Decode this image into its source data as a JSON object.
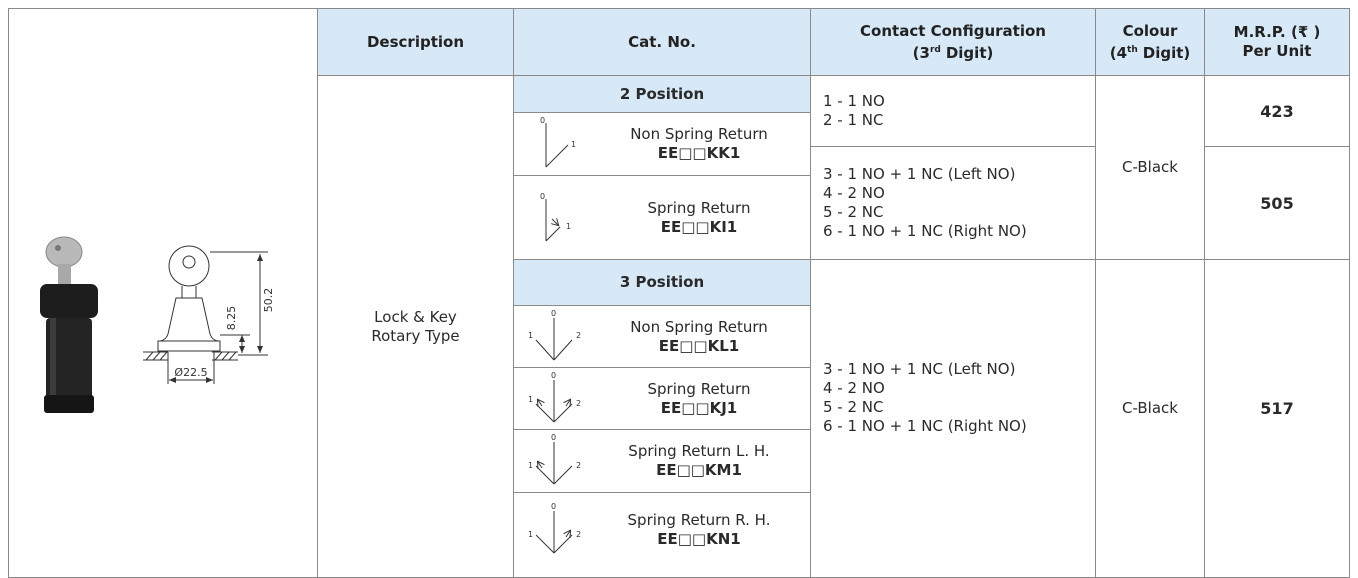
{
  "table": {
    "headers": {
      "description": "Description",
      "cat_no": "Cat. No.",
      "contact_configuration": {
        "line1": "Contact Configuration",
        "digit": "(3",
        "sup": "rd",
        "suffix": "Digit)"
      },
      "colour": {
        "line1": "Colour",
        "digit": "(4",
        "sup": "th",
        "suffix": "Digit)"
      },
      "mrp": {
        "line1": "M.R.P. (₹ )",
        "line2": "Per Unit"
      }
    },
    "figure": {
      "dimensions": [
        "50.2",
        "8.25",
        "Ø22.5"
      ]
    },
    "description": [
      "Lock & Key",
      "Rotary Type"
    ],
    "groups": [
      {
        "position": "2 Position",
        "items": [
          {
            "icon_labels": [
              "0",
              "1"
            ],
            "name": "Non Spring Return",
            "code": "EE□□KK1"
          },
          {
            "icon_labels": [
              "0",
              "1"
            ],
            "name": "Spring Return",
            "code": "EE□□KI1"
          }
        ],
        "contacts": [
          [
            "1 - 1 NO",
            "2 - 1 NC"
          ],
          [
            "3 - 1 NO + 1 NC (Left NO)",
            "4 - 2 NO",
            "5 - 2 NC",
            "6 - 1 NO + 1 NC (Right NO)"
          ]
        ],
        "colour": "C-Black",
        "prices": [
          423,
          505
        ]
      },
      {
        "position": "3 Position",
        "items": [
          {
            "icon_labels": [
              "1",
              "0",
              "2"
            ],
            "name": "Non Spring Return",
            "code": "EE□□KL1"
          },
          {
            "icon_labels": [
              "1",
              "0",
              "2"
            ],
            "name": "Spring Return",
            "code": "EE□□KJ1"
          },
          {
            "icon_labels": [
              "1",
              "0",
              "2"
            ],
            "name": "Spring Return L. H.",
            "code": "EE□□KM1"
          },
          {
            "icon_labels": [
              "1",
              "0",
              "2"
            ],
            "name": "Spring Return R. H.",
            "code": "EE□□KN1"
          }
        ],
        "contacts": [
          [
            "3 - 1 NO + 1 NC (Left NO)",
            "4 - 2 NO",
            "5 - 2 NC",
            "6 - 1 NO + 1 NC (Right NO)"
          ]
        ],
        "colour": "C-Black",
        "prices": [
          517
        ]
      }
    ]
  }
}
